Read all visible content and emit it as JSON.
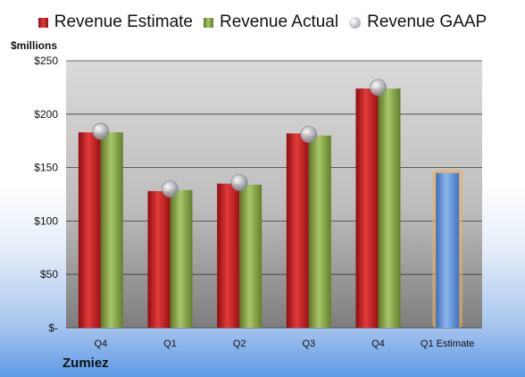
{
  "chart_data": {
    "type": "bar",
    "ylabel": "$millions",
    "company": "Zumiez",
    "ylim": [
      0,
      250
    ],
    "yticks": [
      {
        "value": 0,
        "label": "$-"
      },
      {
        "value": 50,
        "label": "$50"
      },
      {
        "value": 100,
        "label": "$100"
      },
      {
        "value": 150,
        "label": "$150"
      },
      {
        "value": 200,
        "label": "$200"
      },
      {
        "value": 250,
        "label": "$250"
      }
    ],
    "categories": [
      "Q4",
      "Q1",
      "Q2",
      "Q3",
      "Q4",
      "Q1 Estimate"
    ],
    "series": [
      {
        "name": "Revenue Estimate",
        "type": "bar",
        "color": "#c8161b",
        "values": [
          183,
          128,
          135,
          182,
          224,
          null
        ]
      },
      {
        "name": "Revenue Actual",
        "type": "bar",
        "color": "#8aab4a",
        "values": [
          183,
          129,
          134,
          180,
          224,
          null
        ]
      },
      {
        "name": "Revenue GAAP",
        "type": "marker",
        "color": "#b5b8be",
        "values": [
          184,
          130,
          136,
          181,
          225,
          null
        ]
      },
      {
        "name": "",
        "type": "bar",
        "color": "#5f93d8",
        "values": [
          null,
          null,
          null,
          null,
          null,
          145
        ]
      }
    ],
    "grid": true,
    "legend_position": "top"
  }
}
